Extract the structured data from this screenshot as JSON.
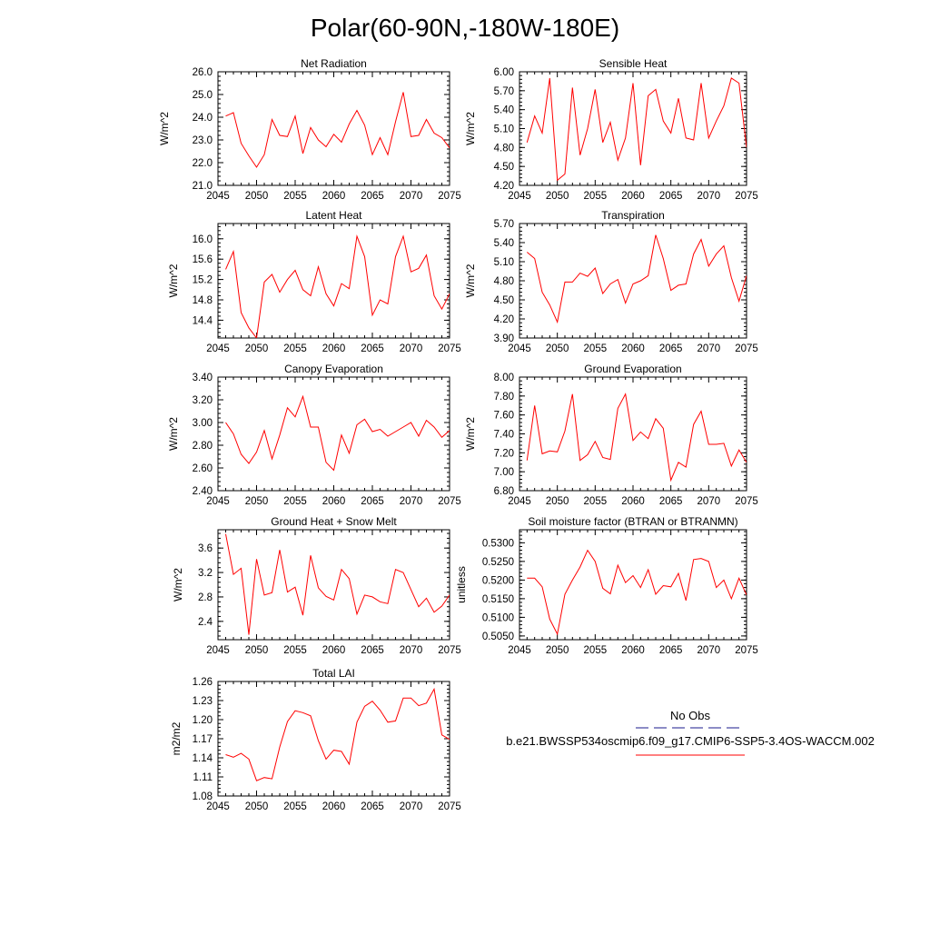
{
  "title": "Polar(60-90N,-180W-180E)",
  "legend": {
    "obs_label": "No Obs",
    "obs_color": "#1a1a8c",
    "model_label": "b.e21.BWSSP534oscmip6.f09_g17.CMIP6-SSP5-3.4OS-WACCM.002",
    "model_color": "#ff0000"
  },
  "chart_data": [
    {
      "type": "line",
      "title": "Net Radiation",
      "ylabel": "W/m^2",
      "xlim": [
        2045,
        2075
      ],
      "xticks": [
        2045,
        2050,
        2055,
        2060,
        2065,
        2070,
        2075
      ],
      "xtick_labels": [
        "2045",
        "2050",
        "2055",
        "2060",
        "2065",
        "2070",
        "2075"
      ],
      "ylim": [
        21.0,
        26.0
      ],
      "yticks": [
        21.0,
        22.0,
        23.0,
        24.0,
        25.0,
        26.0
      ],
      "ytick_labels": [
        "21.0",
        "22.0",
        "23.0",
        "24.0",
        "25.0",
        "26.0"
      ],
      "x": [
        2046,
        2047,
        2048,
        2049,
        2050,
        2051,
        2052,
        2053,
        2054,
        2055,
        2056,
        2057,
        2058,
        2059,
        2060,
        2061,
        2062,
        2063,
        2064,
        2065,
        2066,
        2067,
        2068,
        2069,
        2070,
        2071,
        2072,
        2073,
        2074,
        2075
      ],
      "values": [
        24.05,
        24.2,
        22.85,
        22.3,
        21.8,
        22.35,
        23.9,
        23.2,
        23.15,
        24.05,
        22.4,
        23.55,
        23.0,
        22.7,
        23.25,
        22.9,
        23.7,
        24.3,
        23.65,
        22.35,
        23.1,
        22.35,
        23.8,
        25.1,
        23.15,
        23.2,
        23.9,
        23.3,
        23.1,
        22.65
      ],
      "series_name": "b.e21.BWSSP534oscmip6.f09_g17.CMIP6-SSP5-3.4OS-WACCM.002"
    },
    {
      "type": "line",
      "title": "Sensible Heat",
      "ylabel": "W/m^2",
      "xlim": [
        2045,
        2075
      ],
      "xticks": [
        2045,
        2050,
        2055,
        2060,
        2065,
        2070,
        2075
      ],
      "xtick_labels": [
        "2045",
        "2050",
        "2055",
        "2060",
        "2065",
        "2070",
        "2075"
      ],
      "ylim": [
        4.2,
        6.0
      ],
      "yticks": [
        4.2,
        4.5,
        4.8,
        5.1,
        5.4,
        5.7,
        6.0
      ],
      "ytick_labels": [
        "4.20",
        "4.50",
        "4.80",
        "5.10",
        "5.40",
        "5.70",
        "6.00"
      ],
      "x": [
        2046,
        2047,
        2048,
        2049,
        2050,
        2051,
        2052,
        2053,
        2054,
        2055,
        2056,
        2057,
        2058,
        2059,
        2060,
        2061,
        2062,
        2063,
        2064,
        2065,
        2066,
        2067,
        2068,
        2069,
        2070,
        2071,
        2072,
        2073,
        2074,
        2075
      ],
      "values": [
        4.88,
        5.3,
        5.03,
        5.9,
        4.28,
        4.38,
        5.75,
        4.68,
        5.1,
        5.72,
        4.88,
        5.2,
        4.6,
        4.95,
        5.82,
        4.52,
        5.62,
        5.72,
        5.22,
        5.03,
        5.58,
        4.95,
        4.92,
        5.82,
        4.95,
        5.22,
        5.46,
        5.9,
        5.82,
        4.8
      ],
      "series_name": "b.e21.BWSSP534oscmip6.f09_g17.CMIP6-SSP5-3.4OS-WACCM.002"
    },
    {
      "type": "line",
      "title": "Latent Heat",
      "ylabel": "W/m^2",
      "xlim": [
        2045,
        2075
      ],
      "xticks": [
        2045,
        2050,
        2055,
        2060,
        2065,
        2070,
        2075
      ],
      "xtick_labels": [
        "2045",
        "2050",
        "2055",
        "2060",
        "2065",
        "2070",
        "2075"
      ],
      "ylim": [
        14.05,
        16.3
      ],
      "yticks": [
        14.4,
        14.8,
        15.2,
        15.6,
        16.0
      ],
      "ytick_labels": [
        "14.4",
        "14.8",
        "15.2",
        "15.6",
        "16.0"
      ],
      "x": [
        2046,
        2047,
        2048,
        2049,
        2050,
        2051,
        2052,
        2053,
        2054,
        2055,
        2056,
        2057,
        2058,
        2059,
        2060,
        2061,
        2062,
        2063,
        2064,
        2065,
        2066,
        2067,
        2068,
        2069,
        2070,
        2071,
        2072,
        2073,
        2074,
        2075
      ],
      "values": [
        15.4,
        15.75,
        14.55,
        14.25,
        14.05,
        15.15,
        15.3,
        14.95,
        15.2,
        15.38,
        15.0,
        14.88,
        15.45,
        14.92,
        14.68,
        15.12,
        15.02,
        16.05,
        15.65,
        14.5,
        14.8,
        14.72,
        15.65,
        16.05,
        15.35,
        15.42,
        15.68,
        14.88,
        14.62,
        14.92
      ],
      "series_name": "b.e21.BWSSP534oscmip6.f09_g17.CMIP6-SSP5-3.4OS-WACCM.002"
    },
    {
      "type": "line",
      "title": "Transpiration",
      "ylabel": "W/m^2",
      "xlim": [
        2045,
        2075
      ],
      "xticks": [
        2045,
        2050,
        2055,
        2060,
        2065,
        2070,
        2075
      ],
      "xtick_labels": [
        "2045",
        "2050",
        "2055",
        "2060",
        "2065",
        "2070",
        "2075"
      ],
      "ylim": [
        3.9,
        5.7
      ],
      "yticks": [
        3.9,
        4.2,
        4.5,
        4.8,
        5.1,
        5.4,
        5.7
      ],
      "ytick_labels": [
        "3.90",
        "4.20",
        "4.50",
        "4.80",
        "5.10",
        "5.40",
        "5.70"
      ],
      "x": [
        2046,
        2047,
        2048,
        2049,
        2050,
        2051,
        2052,
        2053,
        2054,
        2055,
        2056,
        2057,
        2058,
        2059,
        2060,
        2061,
        2062,
        2063,
        2064,
        2065,
        2066,
        2067,
        2068,
        2069,
        2070,
        2071,
        2072,
        2073,
        2074,
        2075
      ],
      "values": [
        5.25,
        5.15,
        4.62,
        4.42,
        4.15,
        4.78,
        4.78,
        4.92,
        4.87,
        5.0,
        4.6,
        4.75,
        4.82,
        4.45,
        4.75,
        4.8,
        4.88,
        5.52,
        5.15,
        4.65,
        4.73,
        4.75,
        5.22,
        5.45,
        5.03,
        5.22,
        5.35,
        4.85,
        4.48,
        4.88
      ],
      "series_name": "b.e21.BWSSP534oscmip6.f09_g17.CMIP6-SSP5-3.4OS-WACCM.002"
    },
    {
      "type": "line",
      "title": "Canopy Evaporation",
      "ylabel": "W/m^2",
      "xlim": [
        2045,
        2075
      ],
      "xticks": [
        2045,
        2050,
        2055,
        2060,
        2065,
        2070,
        2075
      ],
      "xtick_labels": [
        "2045",
        "2050",
        "2055",
        "2060",
        "2065",
        "2070",
        "2075"
      ],
      "ylim": [
        2.4,
        3.4
      ],
      "yticks": [
        2.4,
        2.6,
        2.8,
        3.0,
        3.2,
        3.4
      ],
      "ytick_labels": [
        "2.40",
        "2.60",
        "2.80",
        "3.00",
        "3.20",
        "3.40"
      ],
      "x": [
        2046,
        2047,
        2048,
        2049,
        2050,
        2051,
        2052,
        2053,
        2054,
        2055,
        2056,
        2057,
        2058,
        2059,
        2060,
        2061,
        2062,
        2063,
        2064,
        2065,
        2066,
        2067,
        2068,
        2069,
        2070,
        2071,
        2072,
        2073,
        2074,
        2075
      ],
      "values": [
        3.0,
        2.9,
        2.72,
        2.64,
        2.74,
        2.93,
        2.68,
        2.89,
        3.13,
        3.05,
        3.23,
        2.96,
        2.96,
        2.65,
        2.58,
        2.89,
        2.73,
        2.98,
        3.03,
        2.92,
        2.94,
        2.88,
        2.92,
        2.96,
        3.0,
        2.88,
        3.02,
        2.96,
        2.87,
        2.93
      ],
      "series_name": "b.e21.BWSSP534oscmip6.f09_g17.CMIP6-SSP5-3.4OS-WACCM.002"
    },
    {
      "type": "line",
      "title": "Ground Evaporation",
      "ylabel": "W/m^2",
      "xlim": [
        2045,
        2075
      ],
      "xticks": [
        2045,
        2050,
        2055,
        2060,
        2065,
        2070,
        2075
      ],
      "xtick_labels": [
        "2045",
        "2050",
        "2055",
        "2060",
        "2065",
        "2070",
        "2075"
      ],
      "ylim": [
        6.8,
        8.0
      ],
      "yticks": [
        6.8,
        7.0,
        7.2,
        7.4,
        7.6,
        7.8,
        8.0
      ],
      "ytick_labels": [
        "6.80",
        "7.00",
        "7.20",
        "7.40",
        "7.60",
        "7.80",
        "8.00"
      ],
      "x": [
        2046,
        2047,
        2048,
        2049,
        2050,
        2051,
        2052,
        2053,
        2054,
        2055,
        2056,
        2057,
        2058,
        2059,
        2060,
        2061,
        2062,
        2063,
        2064,
        2065,
        2066,
        2067,
        2068,
        2069,
        2070,
        2071,
        2072,
        2073,
        2074,
        2075
      ],
      "values": [
        7.12,
        7.7,
        7.19,
        7.22,
        7.21,
        7.43,
        7.82,
        7.12,
        7.18,
        7.32,
        7.15,
        7.13,
        7.67,
        7.82,
        7.33,
        7.42,
        7.35,
        7.56,
        7.46,
        6.91,
        7.1,
        7.05,
        7.5,
        7.64,
        7.29,
        7.29,
        7.3,
        7.06,
        7.23,
        7.1
      ],
      "series_name": "b.e21.BWSSP534oscmip6.f09_g17.CMIP6-SSP5-3.4OS-WACCM.002"
    },
    {
      "type": "line",
      "title": "Ground Heat + Snow Melt",
      "ylabel": "W/m^2",
      "xlim": [
        2045,
        2075
      ],
      "xticks": [
        2045,
        2050,
        2055,
        2060,
        2065,
        2070,
        2075
      ],
      "xtick_labels": [
        "2045",
        "2050",
        "2055",
        "2060",
        "2065",
        "2070",
        "2075"
      ],
      "ylim": [
        2.1,
        3.9
      ],
      "yticks": [
        2.4,
        2.8,
        3.2,
        3.6
      ],
      "ytick_labels": [
        "2.4",
        "2.8",
        "3.2",
        "3.6"
      ],
      "x": [
        2046,
        2047,
        2048,
        2049,
        2050,
        2051,
        2052,
        2053,
        2054,
        2055,
        2056,
        2057,
        2058,
        2059,
        2060,
        2061,
        2062,
        2063,
        2064,
        2065,
        2066,
        2067,
        2068,
        2069,
        2070,
        2071,
        2072,
        2073,
        2074,
        2075
      ],
      "values": [
        3.83,
        3.17,
        3.27,
        2.18,
        3.42,
        2.83,
        2.87,
        3.57,
        2.88,
        2.96,
        2.5,
        3.48,
        2.95,
        2.81,
        2.75,
        3.25,
        3.1,
        2.52,
        2.83,
        2.8,
        2.72,
        2.69,
        3.25,
        3.2,
        2.92,
        2.64,
        2.78,
        2.55,
        2.65,
        2.83
      ],
      "series_name": "b.e21.BWSSP534oscmip6.f09_g17.CMIP6-SSP5-3.4OS-WACCM.002"
    },
    {
      "type": "line",
      "title": "Soil moisture factor (BTRAN or BTRANMN)",
      "ylabel": "unitless",
      "xlim": [
        2045,
        2075
      ],
      "xticks": [
        2045,
        2050,
        2055,
        2060,
        2065,
        2070,
        2075
      ],
      "xtick_labels": [
        "2045",
        "2050",
        "2055",
        "2060",
        "2065",
        "2070",
        "2075"
      ],
      "ylim": [
        0.504,
        0.5335
      ],
      "yticks": [
        0.505,
        0.51,
        0.515,
        0.52,
        0.525,
        0.53
      ],
      "ytick_labels": [
        "0.5050",
        "0.5100",
        "0.5150",
        "0.5200",
        "0.5250",
        "0.5300"
      ],
      "x": [
        2046,
        2047,
        2048,
        2049,
        2050,
        2051,
        2052,
        2053,
        2054,
        2055,
        2056,
        2057,
        2058,
        2059,
        2060,
        2061,
        2062,
        2063,
        2064,
        2065,
        2066,
        2067,
        2068,
        2069,
        2070,
        2071,
        2072,
        2073,
        2074,
        2075
      ],
      "values": [
        0.5205,
        0.5205,
        0.5182,
        0.5095,
        0.5055,
        0.5162,
        0.52,
        0.5235,
        0.528,
        0.525,
        0.5178,
        0.5163,
        0.524,
        0.5193,
        0.5212,
        0.518,
        0.5228,
        0.5162,
        0.5185,
        0.5182,
        0.5218,
        0.5145,
        0.5255,
        0.5258,
        0.525,
        0.518,
        0.52,
        0.515,
        0.5205,
        0.516
      ],
      "series_name": "b.e21.BWSSP534oscmip6.f09_g17.CMIP6-SSP5-3.4OS-WACCM.002"
    },
    {
      "type": "line",
      "title": "Total LAI",
      "ylabel": "m2/m2",
      "xlim": [
        2045,
        2075
      ],
      "xticks": [
        2045,
        2050,
        2055,
        2060,
        2065,
        2070,
        2075
      ],
      "xtick_labels": [
        "2045",
        "2050",
        "2055",
        "2060",
        "2065",
        "2070",
        "2075"
      ],
      "ylim": [
        1.08,
        1.26
      ],
      "yticks": [
        1.08,
        1.11,
        1.14,
        1.17,
        1.2,
        1.23,
        1.26
      ],
      "ytick_labels": [
        "1.08",
        "1.11",
        "1.14",
        "1.17",
        "1.20",
        "1.23",
        "1.26"
      ],
      "x": [
        2046,
        2047,
        2048,
        2049,
        2050,
        2051,
        2052,
        2053,
        2054,
        2055,
        2056,
        2057,
        2058,
        2059,
        2060,
        2061,
        2062,
        2063,
        2064,
        2065,
        2066,
        2067,
        2068,
        2069,
        2070,
        2071,
        2072,
        2073,
        2074,
        2075
      ],
      "values": [
        1.145,
        1.141,
        1.147,
        1.138,
        1.104,
        1.109,
        1.107,
        1.157,
        1.197,
        1.214,
        1.211,
        1.206,
        1.167,
        1.138,
        1.152,
        1.15,
        1.13,
        1.196,
        1.221,
        1.229,
        1.215,
        1.196,
        1.198,
        1.234,
        1.234,
        1.222,
        1.226,
        1.248,
        1.176,
        1.169
      ],
      "series_name": "b.e21.BWSSP534oscmip6.f09_g17.CMIP6-SSP5-3.4OS-WACCM.002"
    }
  ]
}
